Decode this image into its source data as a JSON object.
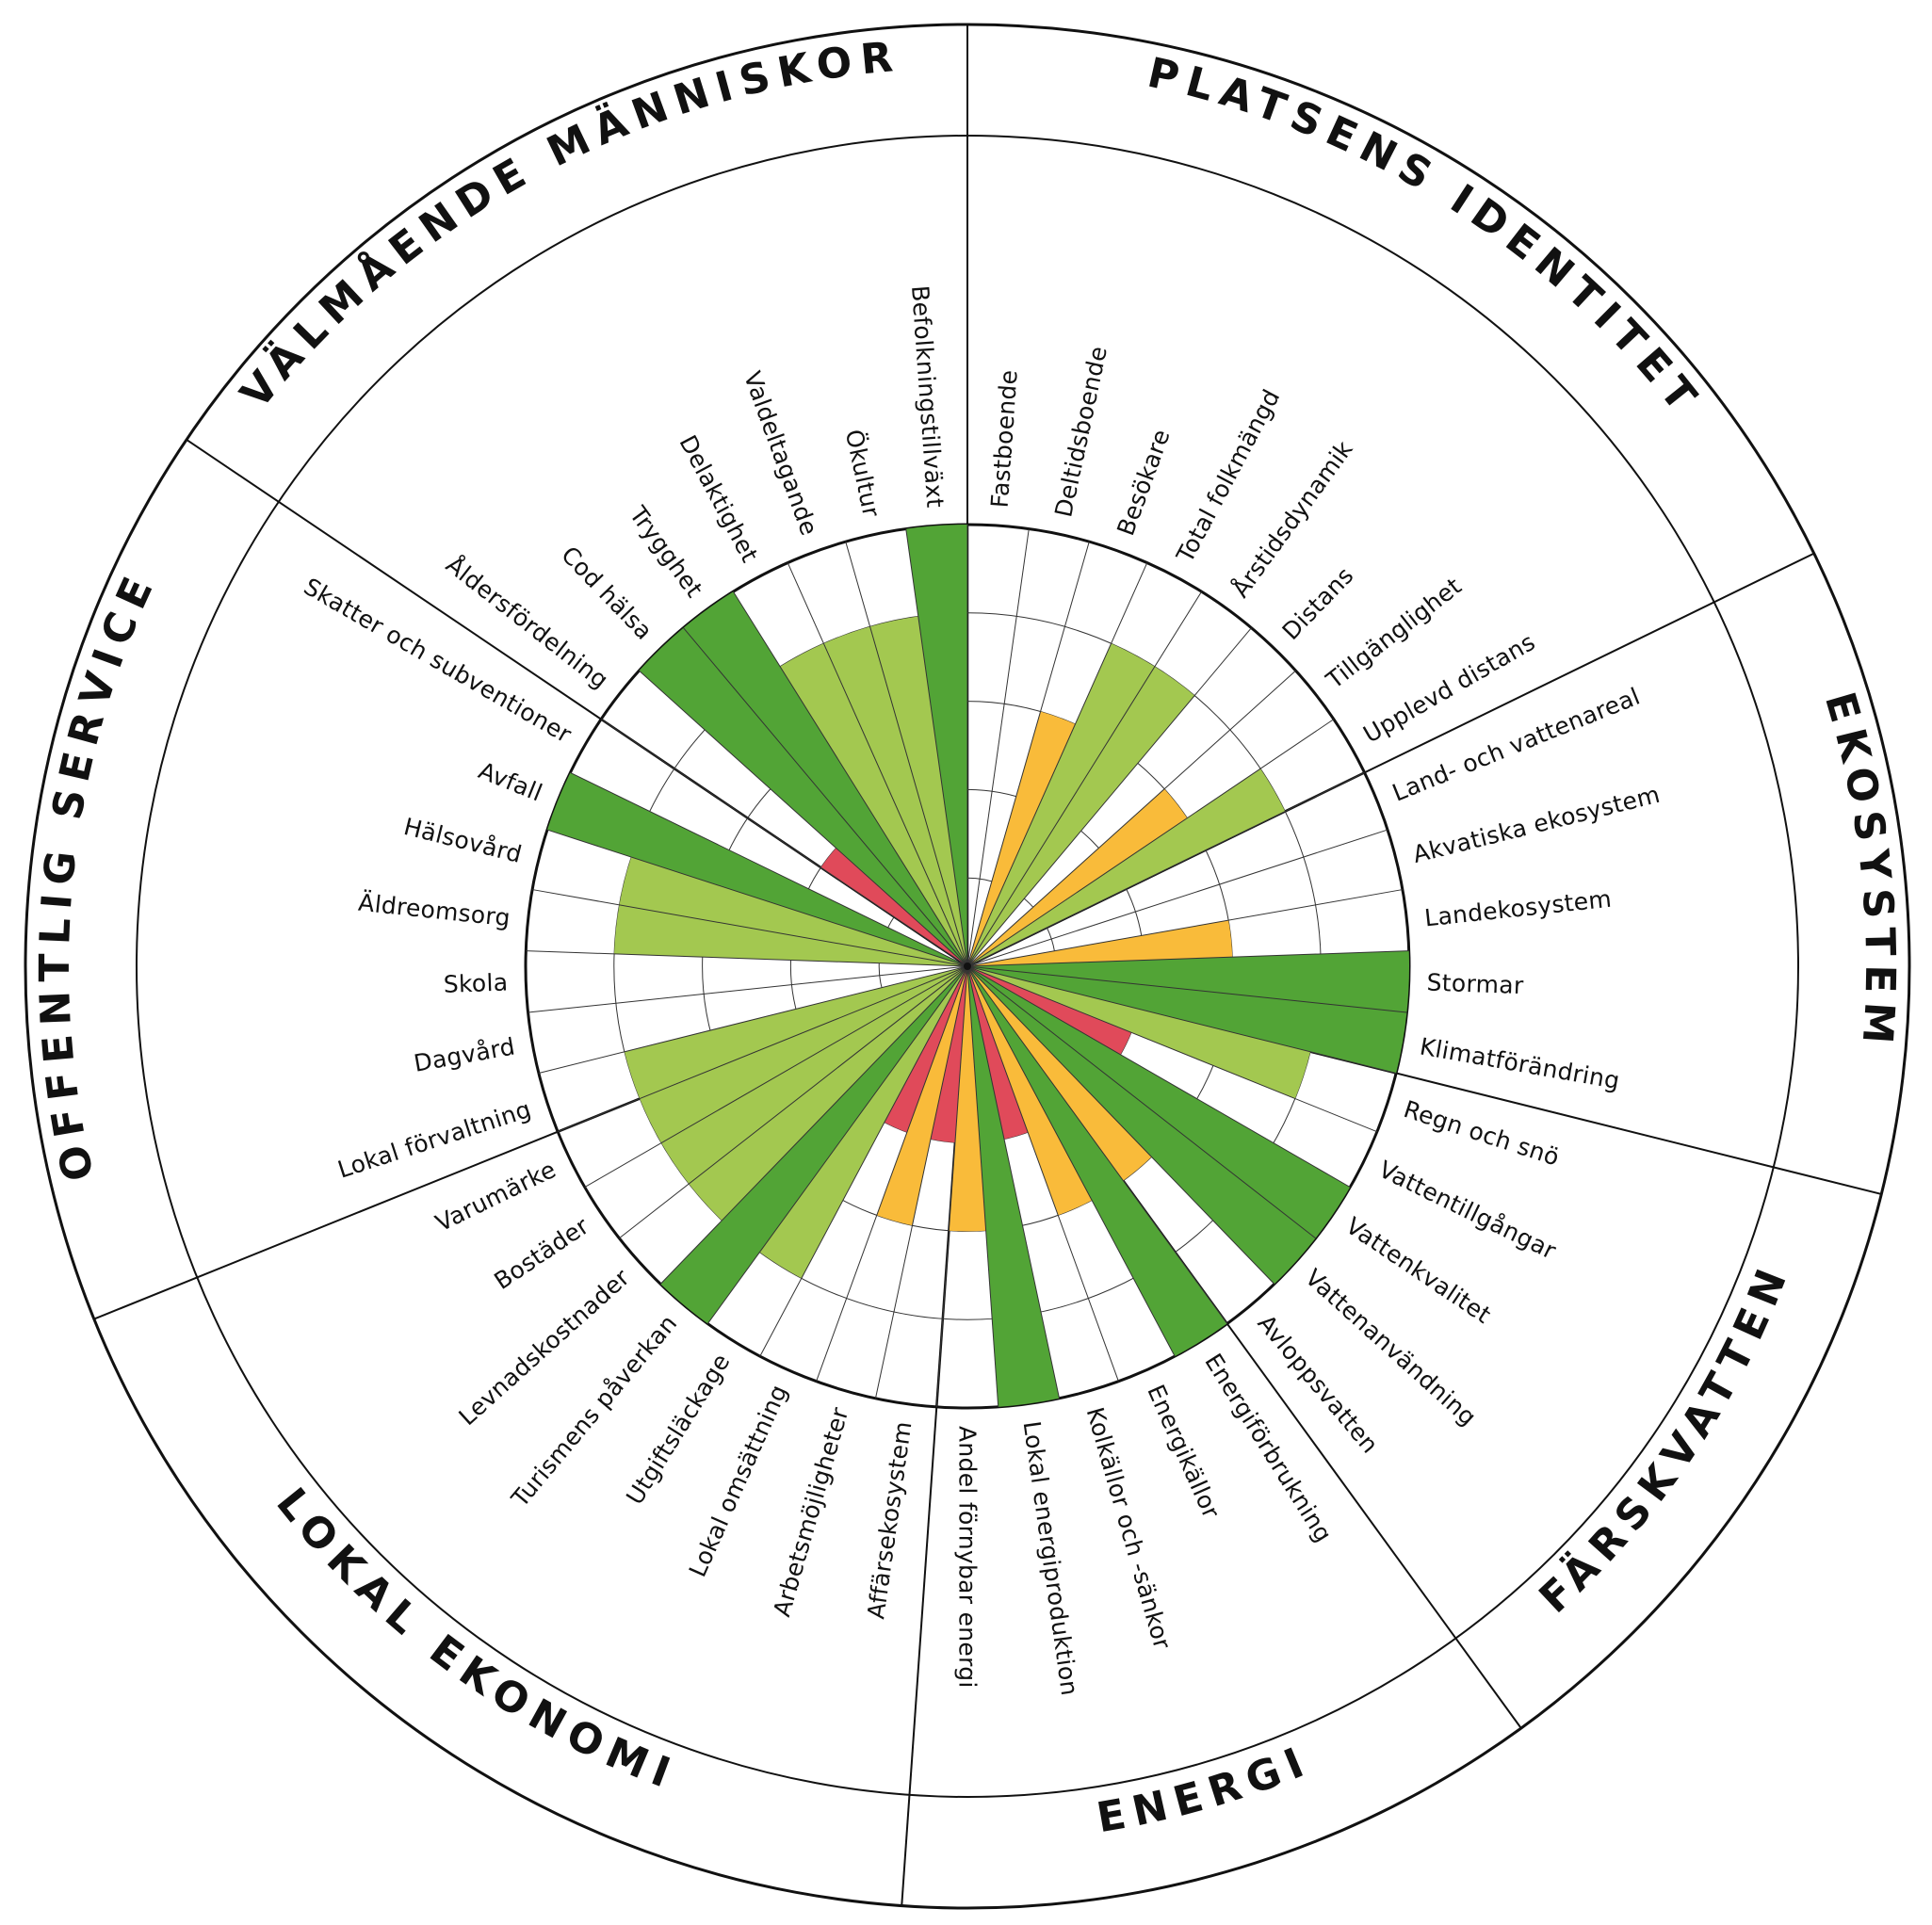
{
  "chart_data": {
    "type": "polar-bar",
    "title": "",
    "max_level": 5,
    "colors": {
      "dark_green": "#52a436",
      "light_green": "#a3c850",
      "yellow": "#f9bb3a",
      "red": "#e04a5a",
      "line": "#111111"
    },
    "sectors": [
      {
        "name": "PLATSENS IDENTITET",
        "items": [
          {
            "label": "Fastboende",
            "level": 0,
            "color": "none"
          },
          {
            "label": "Deltidsboende",
            "level": 0,
            "color": "none"
          },
          {
            "label": "Besökare",
            "level": 3,
            "color": "yellow"
          },
          {
            "label": "Total folkmängd",
            "level": 4,
            "color": "light_green"
          },
          {
            "label": "Årstidsdynamik",
            "level": 4,
            "color": "light_green"
          },
          {
            "label": "Distans",
            "level": 0,
            "color": "none"
          },
          {
            "label": "Tillgänglighet",
            "level": 3,
            "color": "yellow"
          },
          {
            "label": "Upplevd distans",
            "level": 4,
            "color": "light_green"
          }
        ]
      },
      {
        "name": "EKOSYSTEM",
        "items": [
          {
            "label": "Land- och vattenareal",
            "level": 0,
            "color": "none"
          },
          {
            "label": "Akvatiska ekosystem",
            "level": 0,
            "color": "none"
          },
          {
            "label": "Landekosystem",
            "level": 3,
            "color": "yellow"
          },
          {
            "label": "Stormar",
            "level": 5,
            "color": "dark_green"
          },
          {
            "label": "Klimatförändring",
            "level": 5,
            "color": "dark_green"
          }
        ]
      },
      {
        "name": "FÄRSKVATTEN",
        "items": [
          {
            "label": "Regn och snö",
            "level": 4,
            "color": "light_green"
          },
          {
            "label": "Vattentillgångar",
            "level": 2,
            "color": "red"
          },
          {
            "label": "Vattenkvalitet",
            "level": 5,
            "color": "dark_green"
          },
          {
            "label": "Vattenanvändning",
            "level": 5,
            "color": "dark_green"
          },
          {
            "label": "Avloppsvatten",
            "level": 3,
            "color": "yellow"
          }
        ]
      },
      {
        "name": "ENERGI",
        "items": [
          {
            "label": "Energiförbrukning",
            "level": 5,
            "color": "dark_green"
          },
          {
            "label": "Energikällor",
            "level": 3,
            "color": "yellow"
          },
          {
            "label": "Kolkällor och -sänkor",
            "level": 2,
            "color": "red"
          },
          {
            "label": "Lokal energiproduktion",
            "level": 5,
            "color": "dark_green"
          },
          {
            "label": "Andel förnybar energi",
            "level": 3,
            "color": "yellow"
          }
        ]
      },
      {
        "name": "LOKAL EKONOMI",
        "items": [
          {
            "label": "Affärsekosystem",
            "level": 2,
            "color": "red"
          },
          {
            "label": "Arbetsmöjligheter",
            "level": 3,
            "color": "yellow"
          },
          {
            "label": "Lokal omsättning",
            "level": 2,
            "color": "red"
          },
          {
            "label": "Utgiftsläckage",
            "level": 4,
            "color": "light_green"
          },
          {
            "label": "Turismens påverkan",
            "level": 5,
            "color": "dark_green"
          },
          {
            "label": "Levnadskostnader",
            "level": 4,
            "color": "light_green"
          },
          {
            "label": "Bostäder",
            "level": 4,
            "color": "light_green"
          },
          {
            "label": "Varumärke",
            "level": 4,
            "color": "light_green"
          }
        ]
      },
      {
        "name": "OFFENTLIG SERVICE",
        "items": [
          {
            "label": "Lokal förvaltning",
            "level": 4,
            "color": "light_green"
          },
          {
            "label": "Dagvård",
            "level": 0,
            "color": "none"
          },
          {
            "label": "Skola",
            "level": 0,
            "color": "none"
          },
          {
            "label": "Äldreomsorg",
            "level": 4,
            "color": "light_green"
          },
          {
            "label": "Hälsovård",
            "level": 4,
            "color": "light_green"
          },
          {
            "label": "Avfall",
            "level": 5,
            "color": "dark_green"
          },
          {
            "label": "Skatter och subventioner",
            "level": 0,
            "color": "none"
          }
        ]
      },
      {
        "name": "VÄLMÅENDE MÄNNISKOR",
        "items": [
          {
            "label": "Åldersfördelning",
            "level": 2,
            "color": "red"
          },
          {
            "label": "Cod hälsa",
            "level": 5,
            "color": "dark_green"
          },
          {
            "label": "Trygghet",
            "level": 5,
            "color": "dark_green"
          },
          {
            "label": "Delaktighet",
            "level": 4,
            "color": "light_green"
          },
          {
            "label": "Valdeltagande",
            "level": 4,
            "color": "light_green"
          },
          {
            "label": "Ökultur",
            "level": 4,
            "color": "light_green"
          },
          {
            "label": "Befolkningstillväxt",
            "level": 5,
            "color": "dark_green"
          }
        ]
      }
    ]
  }
}
